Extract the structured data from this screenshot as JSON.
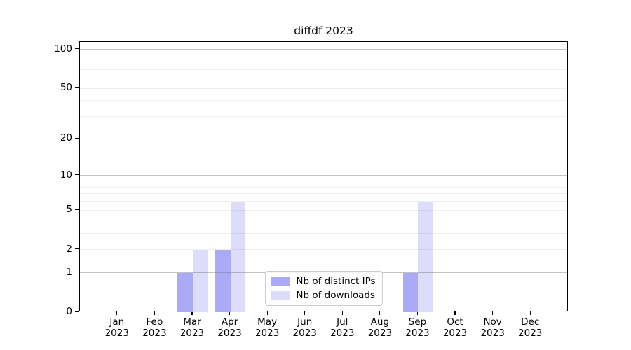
{
  "chart_data": {
    "type": "bar",
    "title": "diffdf 2023",
    "categories": [
      "Jan",
      "Feb",
      "Mar",
      "Apr",
      "May",
      "Jun",
      "Jul",
      "Aug",
      "Sep",
      "Oct",
      "Nov",
      "Dec"
    ],
    "year_label": "2023",
    "series": [
      {
        "key": "distinct-ips",
        "name": "Nb of distinct IPs",
        "color": "#aaaaf6",
        "values": [
          0,
          0,
          1,
          2,
          0,
          0,
          0,
          0,
          1,
          0,
          0,
          0
        ]
      },
      {
        "key": "downloads",
        "name": "Nb of downloads",
        "color": "#dddcfa",
        "values": [
          0,
          0,
          2,
          6,
          0,
          0,
          0,
          0,
          6,
          0,
          0,
          0
        ]
      }
    ],
    "y_axis": {
      "scale": "log1p",
      "tick_values": [
        0,
        1,
        2,
        5,
        10,
        20,
        50,
        100
      ],
      "tick_labels": [
        "0",
        "1",
        "2",
        "5",
        "10",
        "20",
        "50",
        "100"
      ],
      "max_tick": 100
    },
    "grid": {
      "major_values": [
        1,
        10,
        100
      ],
      "minor_values": [
        2,
        3,
        4,
        5,
        6,
        7,
        8,
        9,
        20,
        30,
        40,
        50,
        60,
        70,
        80,
        90
      ]
    },
    "legend": {
      "position": "lower-center"
    },
    "colors": {
      "bar_distinct_ips": "#aaaaf6",
      "bar_downloads": "#dddcfa",
      "grid_major": "#c6c6c6",
      "grid_minor": "#eaeaea",
      "axis": "#000000",
      "background": "#ffffff"
    }
  }
}
